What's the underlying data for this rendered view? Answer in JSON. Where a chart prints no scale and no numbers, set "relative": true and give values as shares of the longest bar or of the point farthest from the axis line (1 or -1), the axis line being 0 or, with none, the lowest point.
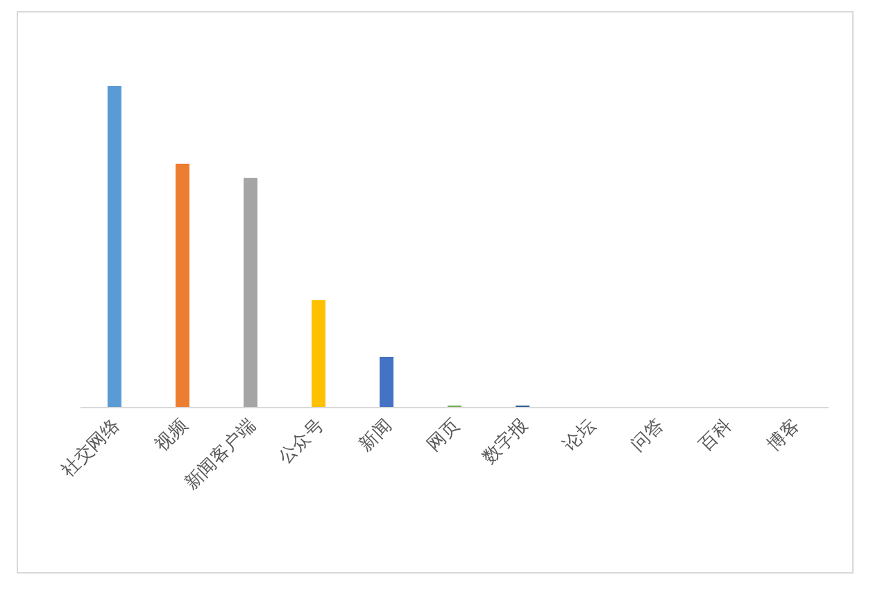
{
  "chart_data": {
    "type": "bar",
    "relative": true,
    "categories": [
      "社交网络",
      "视频",
      "新闻客户端",
      "公众号",
      "新闻",
      "网页",
      "数字报",
      "论坛",
      "问答",
      "百科",
      "博客"
    ],
    "values": [
      1,
      0.758,
      0.714,
      0.333,
      0.156,
      0.004,
      0.004,
      0,
      0,
      0,
      0
    ],
    "colors": [
      "#5b9bd5",
      "#ed7d31",
      "#a5a5a5",
      "#ffc000",
      "#4472c4",
      "#70ad47",
      "#255e91",
      "#9e480e",
      "#636363",
      "#997300",
      "#264478"
    ],
    "orientation": "vertical"
  }
}
